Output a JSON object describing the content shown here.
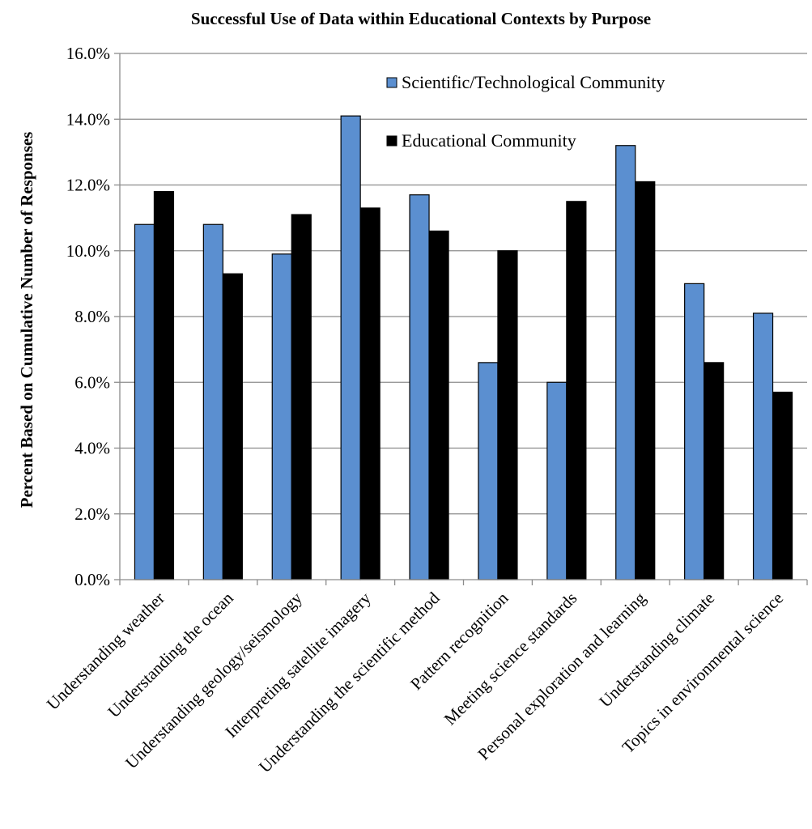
{
  "chart_data": {
    "type": "bar",
    "title": "Successful Use of Data within Educational Contexts by Purpose",
    "xlabel": "",
    "ylabel": "Percent Based on Cumulative Number of Responses",
    "ylim": [
      0,
      16
    ],
    "yticks": [
      "0.0%",
      "2.0%",
      "4.0%",
      "6.0%",
      "8.0%",
      "10.0%",
      "12.0%",
      "14.0%",
      "16.0%"
    ],
    "grid": true,
    "legend_position": "top-right",
    "categories": [
      "Understanding weather",
      "Understanding the ocean",
      "Understanding geology/seismology",
      "Interpreting satellite imagery",
      "Understanding the scientific method",
      "Pattern recognition",
      "Meeting science standards",
      "Personal exploration and learning",
      "Understanding climate",
      "Topics in environmental science"
    ],
    "series": [
      {
        "name": "Scientific/Technological Community",
        "color": "#5b8fd0",
        "values": [
          10.8,
          10.8,
          9.9,
          14.1,
          11.7,
          6.6,
          6.0,
          13.2,
          9.0,
          8.1
        ]
      },
      {
        "name": "Educational Community",
        "color": "#000000",
        "values": [
          11.8,
          9.3,
          11.1,
          11.3,
          10.6,
          10.0,
          11.5,
          12.1,
          6.6,
          5.7
        ]
      }
    ]
  }
}
